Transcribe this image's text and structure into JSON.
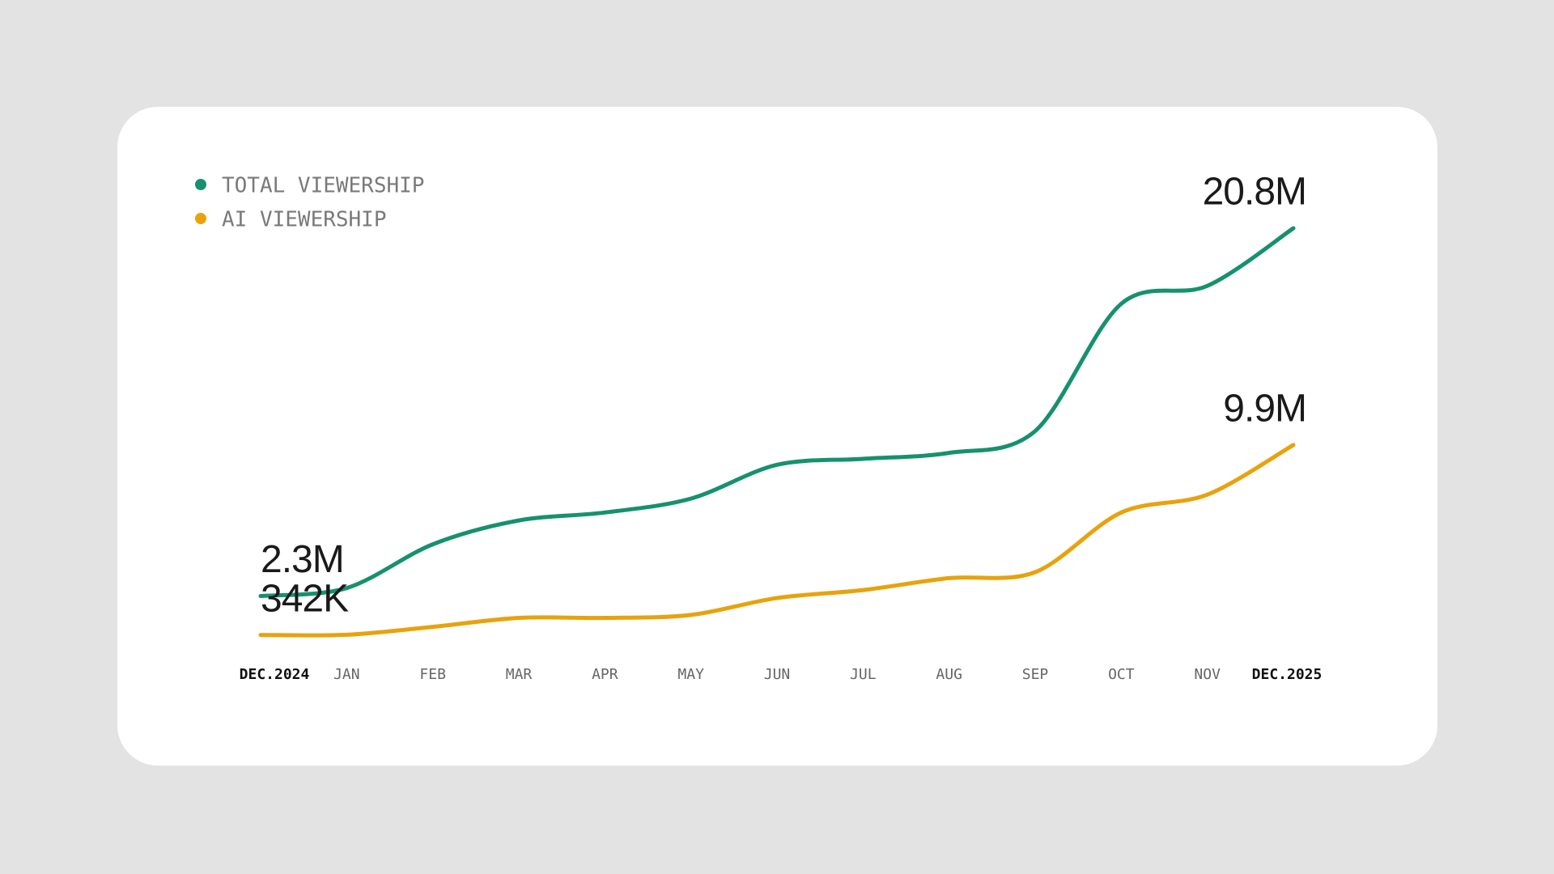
{
  "chart_data": {
    "type": "line",
    "categories": [
      "DEC.2024",
      "JAN",
      "FEB",
      "MAR",
      "APR",
      "MAY",
      "JUN",
      "JUL",
      "AUG",
      "SEP",
      "OCT",
      "NOV",
      "DEC.2025"
    ],
    "series": [
      {
        "name": "TOTAL VIEWERSHIP",
        "color": "#16916e",
        "values": [
          2300000,
          2700000,
          4900000,
          6100000,
          6500000,
          7200000,
          8900000,
          9200000,
          9500000,
          10600000,
          17000000,
          17900000,
          20800000
        ],
        "value_labels": [
          "2.3M",
          null,
          null,
          null,
          null,
          null,
          null,
          null,
          null,
          null,
          null,
          null,
          "20.8M"
        ]
      },
      {
        "name": "AI VIEWERSHIP",
        "color": "#e8a20c",
        "values": [
          342000,
          350000,
          750000,
          1200000,
          1200000,
          1350000,
          2200000,
          2600000,
          3200000,
          3500000,
          6500000,
          7400000,
          9900000
        ],
        "value_labels": [
          "342K",
          null,
          null,
          null,
          null,
          null,
          null,
          null,
          null,
          null,
          null,
          null,
          "9.9M"
        ]
      }
    ]
  }
}
